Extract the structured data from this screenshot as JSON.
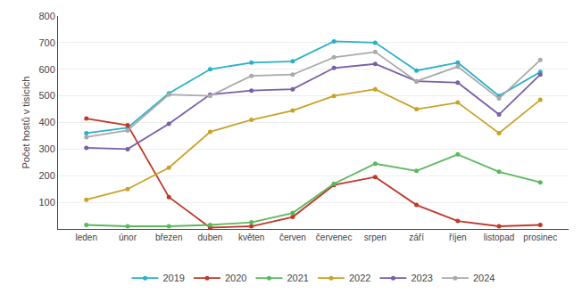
{
  "chart_data": {
    "type": "line",
    "categories": [
      "leden",
      "únor",
      "březen",
      "duben",
      "květen",
      "červen",
      "červenec",
      "srpen",
      "září",
      "říjen",
      "listopad",
      "prosinec"
    ],
    "series": [
      {
        "name": "2019",
        "color": "#2ab0c8",
        "values": [
          360,
          380,
          510,
          600,
          625,
          630,
          705,
          700,
          595,
          625,
          500,
          590
        ]
      },
      {
        "name": "2020",
        "color": "#c0392b",
        "values": [
          415,
          390,
          120,
          5,
          10,
          45,
          165,
          195,
          90,
          30,
          10,
          15
        ]
      },
      {
        "name": "2021",
        "color": "#5cb85c",
        "values": [
          15,
          10,
          10,
          15,
          25,
          60,
          170,
          245,
          218,
          280,
          215,
          175
        ]
      },
      {
        "name": "2022",
        "color": "#c9a227",
        "values": [
          110,
          150,
          230,
          365,
          410,
          445,
          500,
          525,
          450,
          475,
          360,
          485
        ]
      },
      {
        "name": "2023",
        "color": "#7b5ea7",
        "values": [
          305,
          300,
          395,
          505,
          520,
          525,
          605,
          620,
          555,
          550,
          430,
          580
        ]
      },
      {
        "name": "2024",
        "color": "#aaaaaa",
        "values": [
          345,
          370,
          505,
          500,
          575,
          580,
          645,
          665,
          555,
          610,
          490,
          635
        ]
      }
    ],
    "ylabel": "Počet hostů v tisících",
    "ylim": [
      0,
      800
    ],
    "yticks": [
      100,
      200,
      300,
      400,
      500,
      600,
      700,
      800
    ],
    "grid": true,
    "legend": "bottom",
    "marker": "circle"
  }
}
